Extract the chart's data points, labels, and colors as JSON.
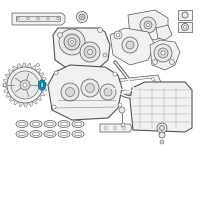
{
  "background_color": "#ffffff",
  "line_color": "#555555",
  "highlight_color": "#00aacc",
  "fig_width": 2.0,
  "fig_height": 2.0,
  "dpi": 100,
  "lw": 0.5,
  "lw_thick": 0.8
}
